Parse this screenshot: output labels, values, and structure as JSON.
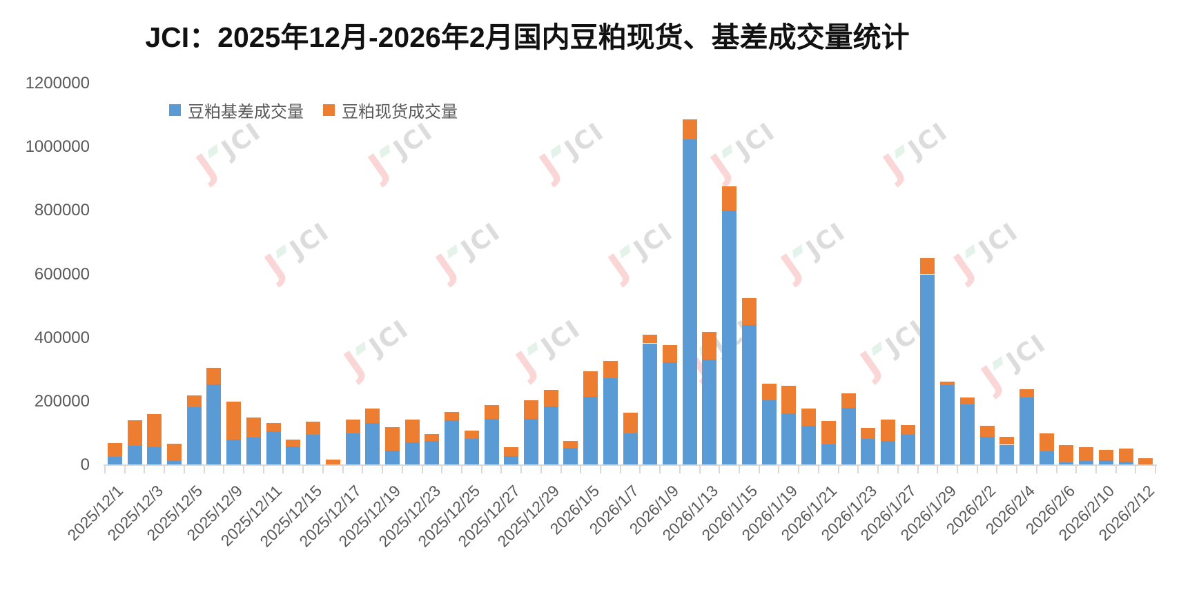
{
  "title": "JCI：2025年12月-2026年2月国内豆粕现货、基差成交量统计",
  "watermark": {
    "text": "JCI",
    "j_text": "J"
  },
  "colors": {
    "basis_blue": "#5B9BD5",
    "spot_orange": "#ED7D31",
    "axis_text": "#595959",
    "axis_line": "#d9d9d9",
    "title_text": "#111111"
  },
  "chart_data": {
    "type": "bar",
    "stacked": true,
    "title": "JCI：2025年12月-2026年2月国内豆粕现货、基差成交量统计",
    "xlabel": "",
    "ylabel": "",
    "ylim": [
      0,
      1200000
    ],
    "y_ticks": [
      "0",
      "200000",
      "400000",
      "600000",
      "800000",
      "1000000",
      "1200000"
    ],
    "grid": false,
    "legend_position": "top-left",
    "x_label_rotation": 45,
    "x_label_interval": 2,
    "categories": [
      "2025/12/1",
      "",
      "2025/12/3",
      "",
      "2025/12/5",
      "",
      "2025/12/9",
      "",
      "2025/12/11",
      "",
      "2025/12/15",
      "",
      "2025/12/17",
      "",
      "2025/12/19",
      "",
      "2025/12/23",
      "",
      "2025/12/25",
      "",
      "2025/12/27",
      "",
      "2025/12/29",
      "",
      "2026/1/5",
      "",
      "2026/1/7",
      "",
      "2026/1/9",
      "",
      "2026/1/13",
      "",
      "2026/1/15",
      "",
      "2026/1/19",
      "",
      "2026/1/21",
      "",
      "2026/1/23",
      "",
      "2026/1/27",
      "",
      "2026/1/29",
      "",
      "2026/2/2",
      "",
      "2026/2/4",
      "",
      "2026/2/6",
      "",
      "2026/2/10",
      "",
      "2026/2/12"
    ],
    "series": [
      {
        "name": "豆粕基差成交量",
        "color": "#5B9BD5",
        "values": [
          25000,
          61000,
          56000,
          13000,
          182000,
          253000,
          81000,
          87000,
          106000,
          58000,
          95000,
          3000,
          99000,
          133000,
          45000,
          72000,
          77000,
          140000,
          82000,
          145000,
          28000,
          145000,
          185000,
          55000,
          215000,
          273000,
          99000,
          383000,
          323000,
          1025000,
          332000,
          800000,
          441000,
          204000,
          162000,
          123000,
          65000,
          180000,
          82000,
          75000,
          95000,
          600000,
          251000,
          191000,
          88000,
          64000,
          213000,
          43000,
          9000,
          12000,
          16000,
          10000,
          2000
        ]
      },
      {
        "name": "豆粕现货成交量",
        "color": "#ED7D31",
        "values": [
          45000,
          80000,
          104000,
          54000,
          38000,
          52000,
          119000,
          63000,
          27000,
          23000,
          42000,
          15000,
          44000,
          44000,
          74000,
          72000,
          20000,
          28000,
          27000,
          43000,
          28000,
          60000,
          52000,
          20000,
          80000,
          54000,
          67000,
          27000,
          55000,
          63000,
          87000,
          77000,
          85000,
          51000,
          87000,
          56000,
          74000,
          46000,
          35000,
          69000,
          31000,
          50000,
          12000,
          22000,
          35000,
          26000,
          26000,
          56000,
          54000,
          45000,
          31000,
          42000,
          19000
        ]
      }
    ]
  }
}
